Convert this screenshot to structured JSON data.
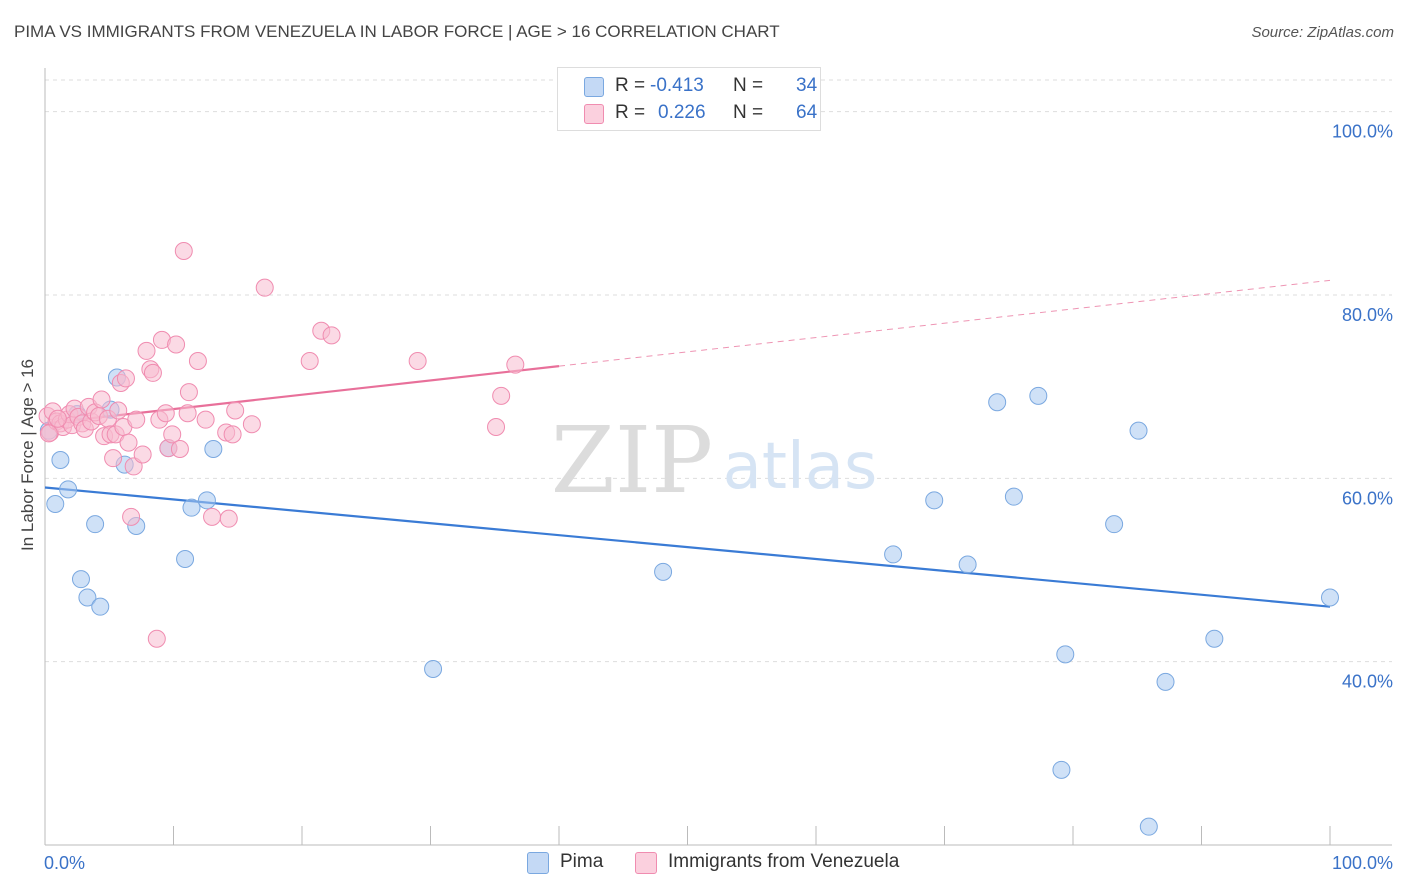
{
  "title": "PIMA VS IMMIGRANTS FROM VENEZUELA IN LABOR FORCE | AGE > 16 CORRELATION CHART",
  "source": "Source: ZipAtlas.com",
  "watermark": {
    "zip": "ZIP",
    "atlas": "atlas"
  },
  "legend": {
    "r_label": "R =",
    "n_label": "N =",
    "rows": [
      {
        "r": "-0.413",
        "n": "34"
      },
      {
        "r": "0.226",
        "n": "64"
      }
    ]
  },
  "chart_data": {
    "type": "scatter",
    "xlabel": "",
    "ylabel": "In Labor Force | Age > 16",
    "xlim": [
      0,
      100
    ],
    "ylim": [
      20,
      104
    ],
    "x_tick_labels": [
      "0.0%",
      "100.0%"
    ],
    "y_ticks": [
      40,
      60,
      80,
      100
    ],
    "y_tick_labels": [
      "40.0%",
      "60.0%",
      "80.0%",
      "100.0%"
    ],
    "grid": true,
    "legend_position": "top-center",
    "series": [
      {
        "name": "Pima",
        "color": "#a8c8f0",
        "stroke": "#7aa8e0",
        "line_color": "#3a7bd5",
        "r": -0.413,
        "n": 34,
        "trend": {
          "x0": 0,
          "y0": 59.0,
          "x1": 100,
          "y1": 46.0,
          "solid_until": 100
        },
        "points": [
          [
            0.3,
            65.2
          ],
          [
            0.8,
            57.2
          ],
          [
            1.2,
            62.0
          ],
          [
            1.8,
            58.8
          ],
          [
            2.5,
            67.0
          ],
          [
            2.8,
            49.0
          ],
          [
            3.3,
            47.0
          ],
          [
            3.9,
            55.0
          ],
          [
            4.3,
            46.0
          ],
          [
            5.1,
            67.5
          ],
          [
            5.6,
            71.0
          ],
          [
            6.2,
            61.5
          ],
          [
            7.1,
            54.8
          ],
          [
            9.6,
            63.3
          ],
          [
            10.9,
            51.2
          ],
          [
            11.4,
            56.8
          ],
          [
            12.6,
            57.6
          ],
          [
            13.1,
            63.2
          ],
          [
            30.2,
            39.2
          ],
          [
            48.1,
            49.8
          ],
          [
            66.0,
            51.7
          ],
          [
            69.2,
            57.6
          ],
          [
            71.8,
            50.6
          ],
          [
            74.1,
            68.3
          ],
          [
            75.4,
            58.0
          ],
          [
            77.3,
            69.0
          ],
          [
            79.1,
            28.2
          ],
          [
            79.4,
            40.8
          ],
          [
            83.2,
            55.0
          ],
          [
            85.1,
            65.2
          ],
          [
            85.9,
            22.0
          ],
          [
            87.2,
            37.8
          ],
          [
            91.0,
            42.5
          ],
          [
            100.0,
            47.0
          ]
        ]
      },
      {
        "name": "Immigrants from Venezuela",
        "color": "#f8bcd0",
        "stroke": "#f08cb0",
        "line_color": "#e8709a",
        "r": 0.226,
        "n": 64,
        "trend": {
          "x0": 0,
          "y0": 66.0,
          "x1": 100,
          "y1": 81.6,
          "solid_until": 40
        },
        "points": [
          [
            0.2,
            66.8
          ],
          [
            0.4,
            65.0
          ],
          [
            0.6,
            67.3
          ],
          [
            0.9,
            66.2
          ],
          [
            1.2,
            66.0
          ],
          [
            1.4,
            65.6
          ],
          [
            1.7,
            66.4
          ],
          [
            1.9,
            67.0
          ],
          [
            2.1,
            65.8
          ],
          [
            2.3,
            67.6
          ],
          [
            2.6,
            66.7
          ],
          [
            2.9,
            66.0
          ],
          [
            3.1,
            65.4
          ],
          [
            3.4,
            67.8
          ],
          [
            3.6,
            66.2
          ],
          [
            3.9,
            67.2
          ],
          [
            4.2,
            66.8
          ],
          [
            4.4,
            68.6
          ],
          [
            4.6,
            64.6
          ],
          [
            4.9,
            66.5
          ],
          [
            5.1,
            64.8
          ],
          [
            5.3,
            62.2
          ],
          [
            5.5,
            64.8
          ],
          [
            5.7,
            67.4
          ],
          [
            5.9,
            70.4
          ],
          [
            6.1,
            65.6
          ],
          [
            6.3,
            70.9
          ],
          [
            6.5,
            63.9
          ],
          [
            6.7,
            55.8
          ],
          [
            6.9,
            61.3
          ],
          [
            7.1,
            66.4
          ],
          [
            7.6,
            62.6
          ],
          [
            7.9,
            73.9
          ],
          [
            8.2,
            71.9
          ],
          [
            8.4,
            71.5
          ],
          [
            8.7,
            42.5
          ],
          [
            8.9,
            66.4
          ],
          [
            9.1,
            75.1
          ],
          [
            9.4,
            67.1
          ],
          [
            9.6,
            63.3
          ],
          [
            9.9,
            64.8
          ],
          [
            10.2,
            74.6
          ],
          [
            10.5,
            63.2
          ],
          [
            10.8,
            84.8
          ],
          [
            11.1,
            67.1
          ],
          [
            11.2,
            69.4
          ],
          [
            11.9,
            72.8
          ],
          [
            12.5,
            66.4
          ],
          [
            13.0,
            55.8
          ],
          [
            14.1,
            65.0
          ],
          [
            14.3,
            55.6
          ],
          [
            14.6,
            64.8
          ],
          [
            14.8,
            67.4
          ],
          [
            16.1,
            65.9
          ],
          [
            17.1,
            80.8
          ],
          [
            20.6,
            72.8
          ],
          [
            21.5,
            76.1
          ],
          [
            22.3,
            75.6
          ],
          [
            29.0,
            72.8
          ],
          [
            35.1,
            65.6
          ],
          [
            35.5,
            69.0
          ],
          [
            36.6,
            72.4
          ],
          [
            0.3,
            64.9
          ],
          [
            1.0,
            66.5
          ]
        ]
      }
    ]
  }
}
